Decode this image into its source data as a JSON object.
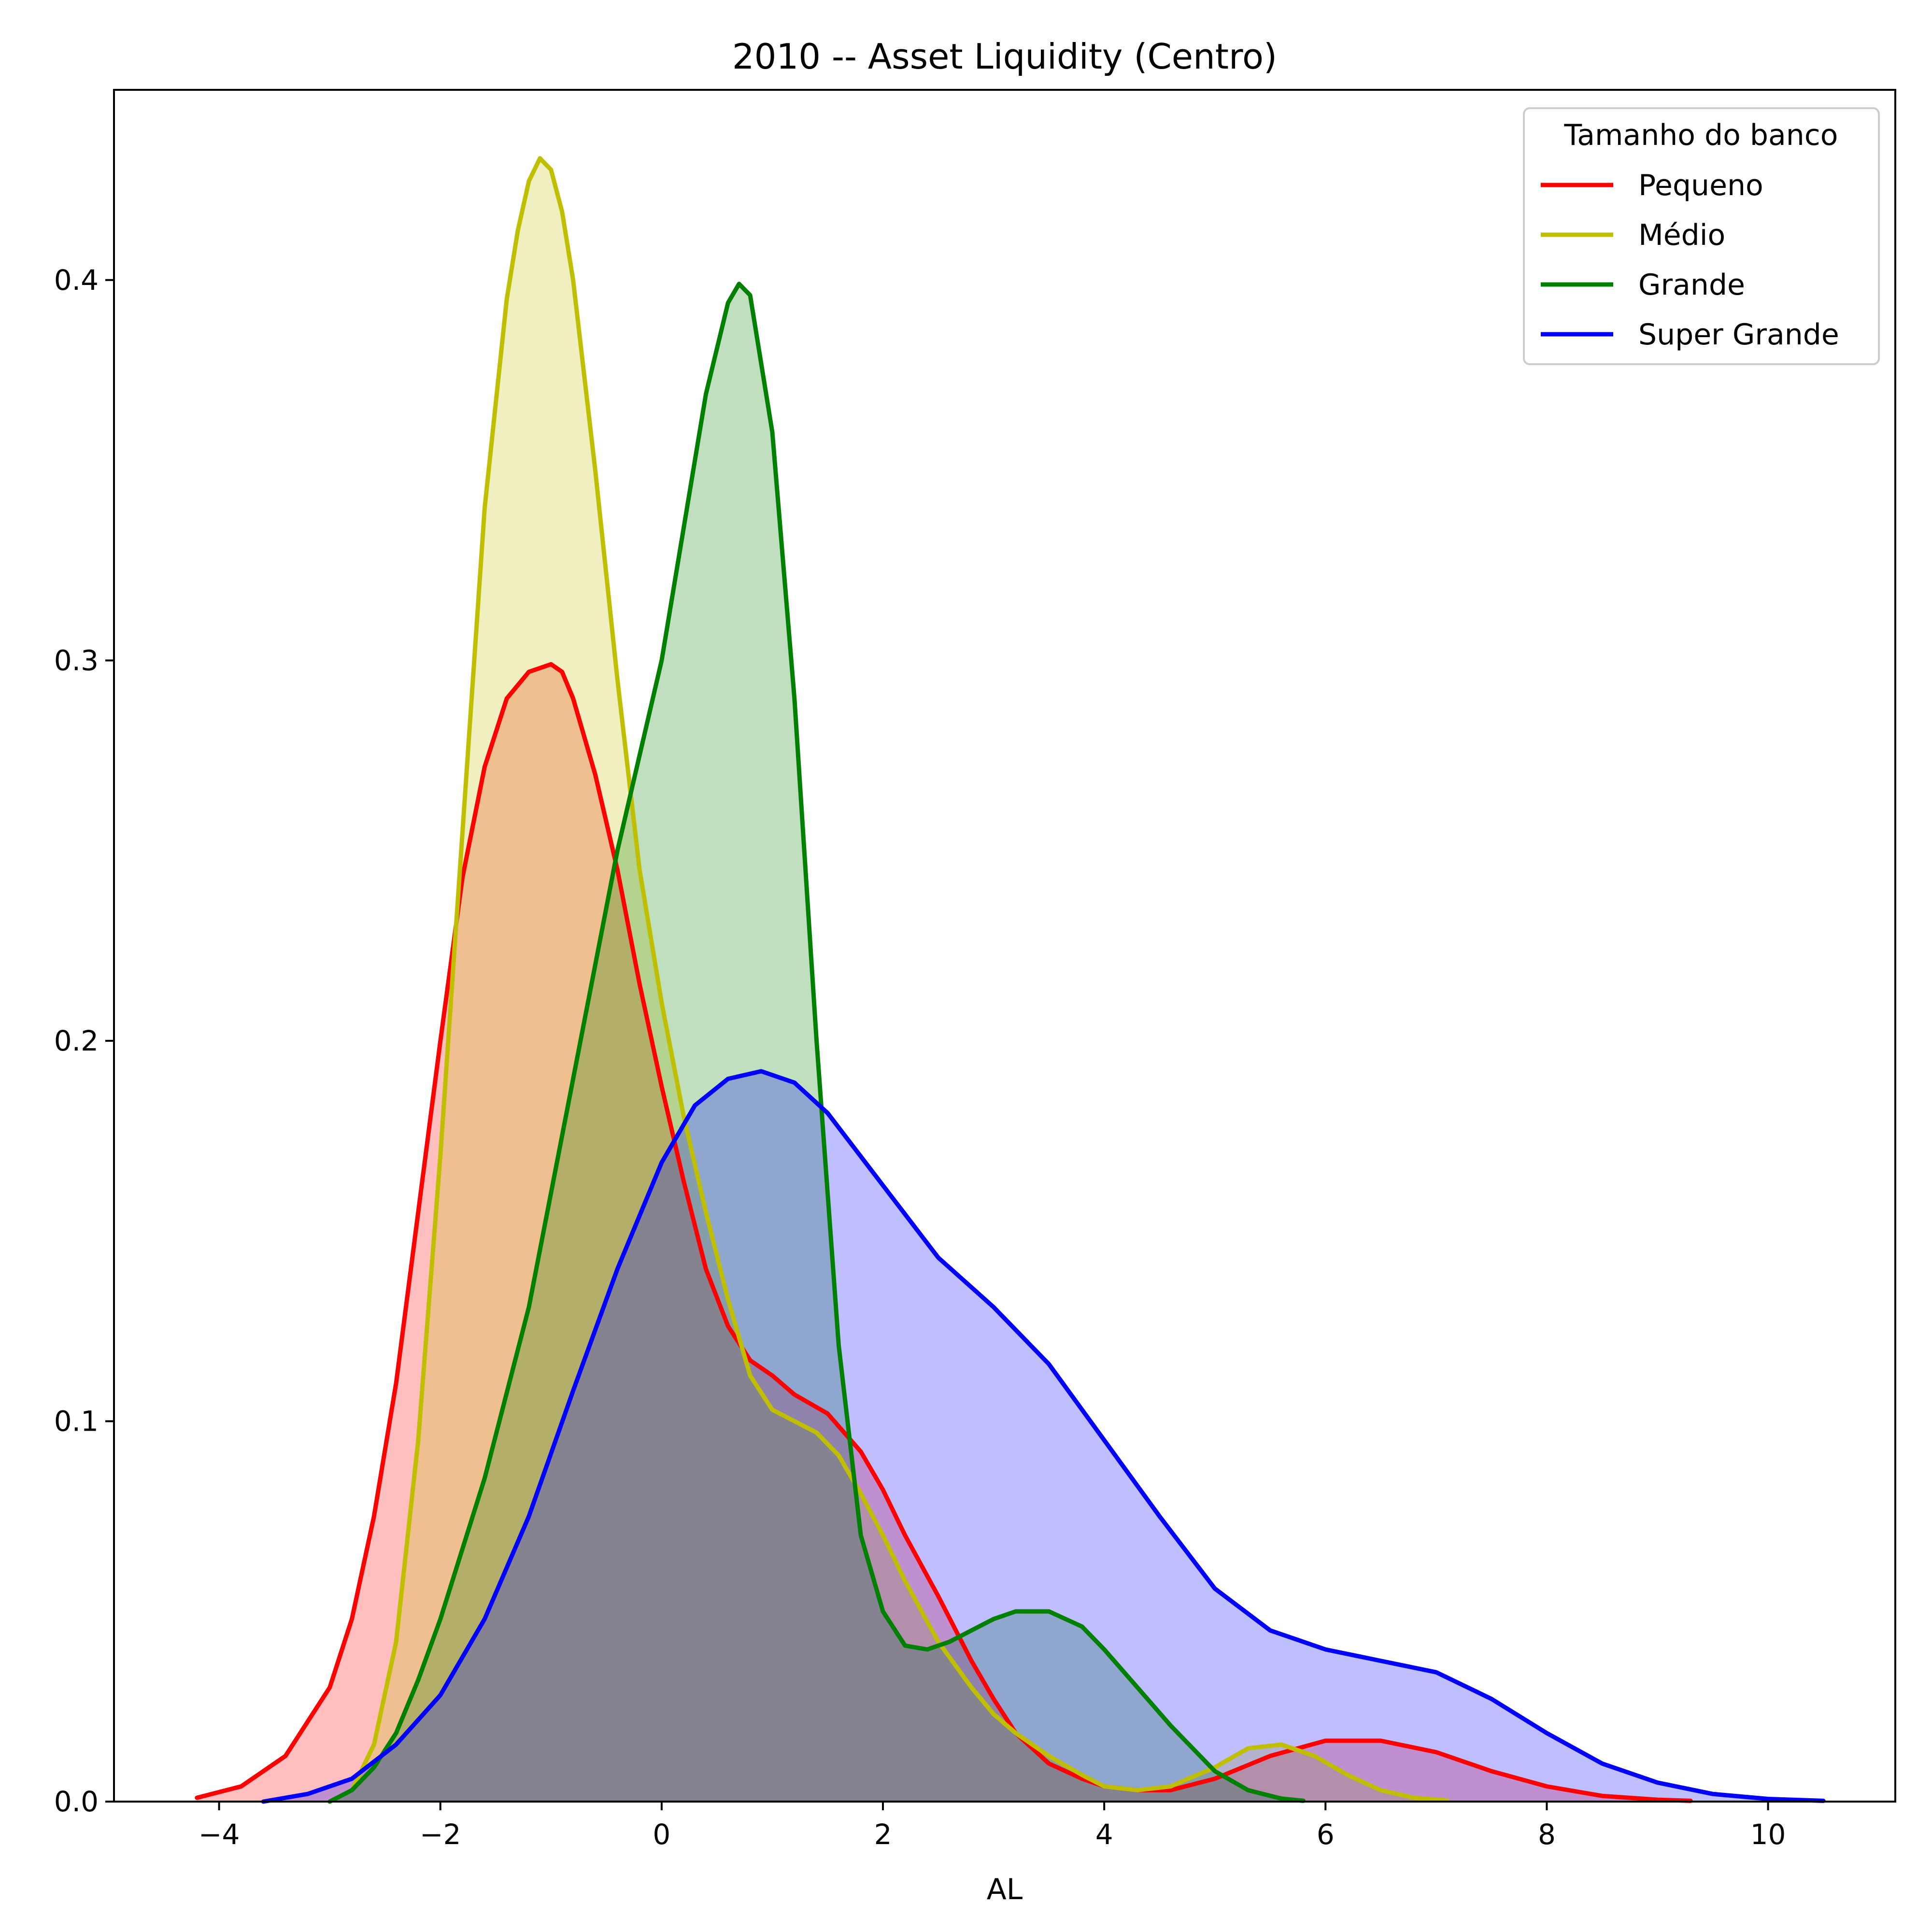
{
  "chart_data": {
    "type": "area",
    "title": "2010 -- Asset Liquidity (Centro)",
    "xlabel": "AL",
    "ylabel": "",
    "xlim": [
      -4.95,
      11.15
    ],
    "ylim": [
      0,
      0.45
    ],
    "xticks": [
      -4,
      -2,
      0,
      2,
      4,
      6,
      8,
      10
    ],
    "yticks": [
      0.0,
      0.1,
      0.2,
      0.3,
      0.4
    ],
    "xtick_labels": [
      "−4",
      "−2",
      "0",
      "2",
      "4",
      "6",
      "8",
      "10"
    ],
    "ytick_labels": [
      "0.0",
      "0.1",
      "0.2",
      "0.3",
      "0.4"
    ],
    "grid": false,
    "legend": {
      "title": "Tamanho do banco",
      "position": "top-right"
    },
    "series": [
      {
        "name": "Pequeno",
        "color": "#ff0000",
        "fill_opacity": 0.25,
        "x": [
          -4.2,
          -3.8,
          -3.4,
          -3.0,
          -2.8,
          -2.6,
          -2.4,
          -2.2,
          -2.0,
          -1.8,
          -1.6,
          -1.4,
          -1.2,
          -1.0,
          -0.9,
          -0.8,
          -0.6,
          -0.4,
          -0.2,
          0.0,
          0.2,
          0.4,
          0.6,
          0.8,
          1.0,
          1.2,
          1.5,
          1.8,
          2.0,
          2.2,
          2.5,
          2.8,
          3.0,
          3.2,
          3.5,
          3.8,
          4.0,
          4.3,
          4.6,
          5.0,
          5.5,
          6.0,
          6.5,
          7.0,
          7.5,
          8.0,
          8.5,
          9.0,
          9.3
        ],
        "y": [
          0.001,
          0.004,
          0.012,
          0.03,
          0.048,
          0.075,
          0.11,
          0.155,
          0.2,
          0.243,
          0.272,
          0.29,
          0.297,
          0.299,
          0.297,
          0.29,
          0.27,
          0.245,
          0.215,
          0.188,
          0.163,
          0.14,
          0.125,
          0.116,
          0.112,
          0.107,
          0.102,
          0.092,
          0.082,
          0.07,
          0.054,
          0.037,
          0.027,
          0.018,
          0.01,
          0.006,
          0.004,
          0.003,
          0.003,
          0.006,
          0.012,
          0.016,
          0.016,
          0.013,
          0.008,
          0.004,
          0.0015,
          0.0005,
          0.0002
        ]
      },
      {
        "name": "Médio",
        "color": "#bfbf00",
        "fill_opacity": 0.25,
        "x": [
          -3.0,
          -2.8,
          -2.6,
          -2.4,
          -2.2,
          -2.0,
          -1.8,
          -1.6,
          -1.4,
          -1.3,
          -1.2,
          -1.1,
          -1.0,
          -0.9,
          -0.8,
          -0.6,
          -0.4,
          -0.2,
          0.0,
          0.2,
          0.4,
          0.6,
          0.8,
          1.0,
          1.2,
          1.4,
          1.6,
          1.8,
          2.0,
          2.2,
          2.5,
          2.8,
          3.0,
          3.2,
          3.5,
          3.8,
          4.0,
          4.3,
          4.6,
          5.0,
          5.3,
          5.6,
          5.9,
          6.2,
          6.5,
          6.8,
          7.1
        ],
        "y": [
          0.0,
          0.003,
          0.015,
          0.042,
          0.095,
          0.17,
          0.255,
          0.34,
          0.395,
          0.413,
          0.426,
          0.432,
          0.429,
          0.418,
          0.4,
          0.35,
          0.295,
          0.245,
          0.21,
          0.18,
          0.155,
          0.132,
          0.112,
          0.103,
          0.1,
          0.097,
          0.091,
          0.081,
          0.07,
          0.058,
          0.042,
          0.03,
          0.023,
          0.018,
          0.012,
          0.007,
          0.004,
          0.003,
          0.004,
          0.009,
          0.014,
          0.015,
          0.012,
          0.007,
          0.003,
          0.001,
          0.0003
        ]
      },
      {
        "name": "Grande",
        "color": "#008000",
        "fill_opacity": 0.25,
        "x": [
          -3.0,
          -2.8,
          -2.6,
          -2.4,
          -2.2,
          -2.0,
          -1.6,
          -1.2,
          -0.8,
          -0.4,
          0.0,
          0.2,
          0.4,
          0.6,
          0.7,
          0.8,
          1.0,
          1.2,
          1.4,
          1.6,
          1.8,
          2.0,
          2.2,
          2.4,
          2.6,
          2.8,
          3.0,
          3.2,
          3.5,
          3.8,
          4.0,
          4.3,
          4.6,
          5.0,
          5.3,
          5.6,
          5.8
        ],
        "y": [
          0.0,
          0.003,
          0.009,
          0.018,
          0.032,
          0.048,
          0.085,
          0.13,
          0.19,
          0.25,
          0.3,
          0.335,
          0.37,
          0.394,
          0.399,
          0.396,
          0.36,
          0.29,
          0.2,
          0.12,
          0.07,
          0.05,
          0.041,
          0.04,
          0.042,
          0.045,
          0.048,
          0.05,
          0.05,
          0.046,
          0.04,
          0.03,
          0.02,
          0.008,
          0.003,
          0.0008,
          0.0002
        ]
      },
      {
        "name": "Super Grande",
        "color": "#0000ff",
        "fill_opacity": 0.25,
        "x": [
          -3.6,
          -3.2,
          -2.8,
          -2.4,
          -2.0,
          -1.6,
          -1.2,
          -0.8,
          -0.4,
          0.0,
          0.3,
          0.6,
          0.9,
          1.2,
          1.5,
          2.0,
          2.5,
          3.0,
          3.5,
          4.0,
          4.5,
          5.0,
          5.5,
          6.0,
          6.5,
          7.0,
          7.5,
          8.0,
          8.5,
          9.0,
          9.5,
          10.0,
          10.5
        ],
        "y": [
          0.0,
          0.002,
          0.006,
          0.015,
          0.028,
          0.048,
          0.075,
          0.108,
          0.14,
          0.168,
          0.183,
          0.19,
          0.192,
          0.189,
          0.181,
          0.162,
          0.143,
          0.13,
          0.115,
          0.095,
          0.075,
          0.056,
          0.045,
          0.04,
          0.037,
          0.034,
          0.027,
          0.018,
          0.01,
          0.005,
          0.002,
          0.0007,
          0.0002
        ]
      }
    ]
  }
}
